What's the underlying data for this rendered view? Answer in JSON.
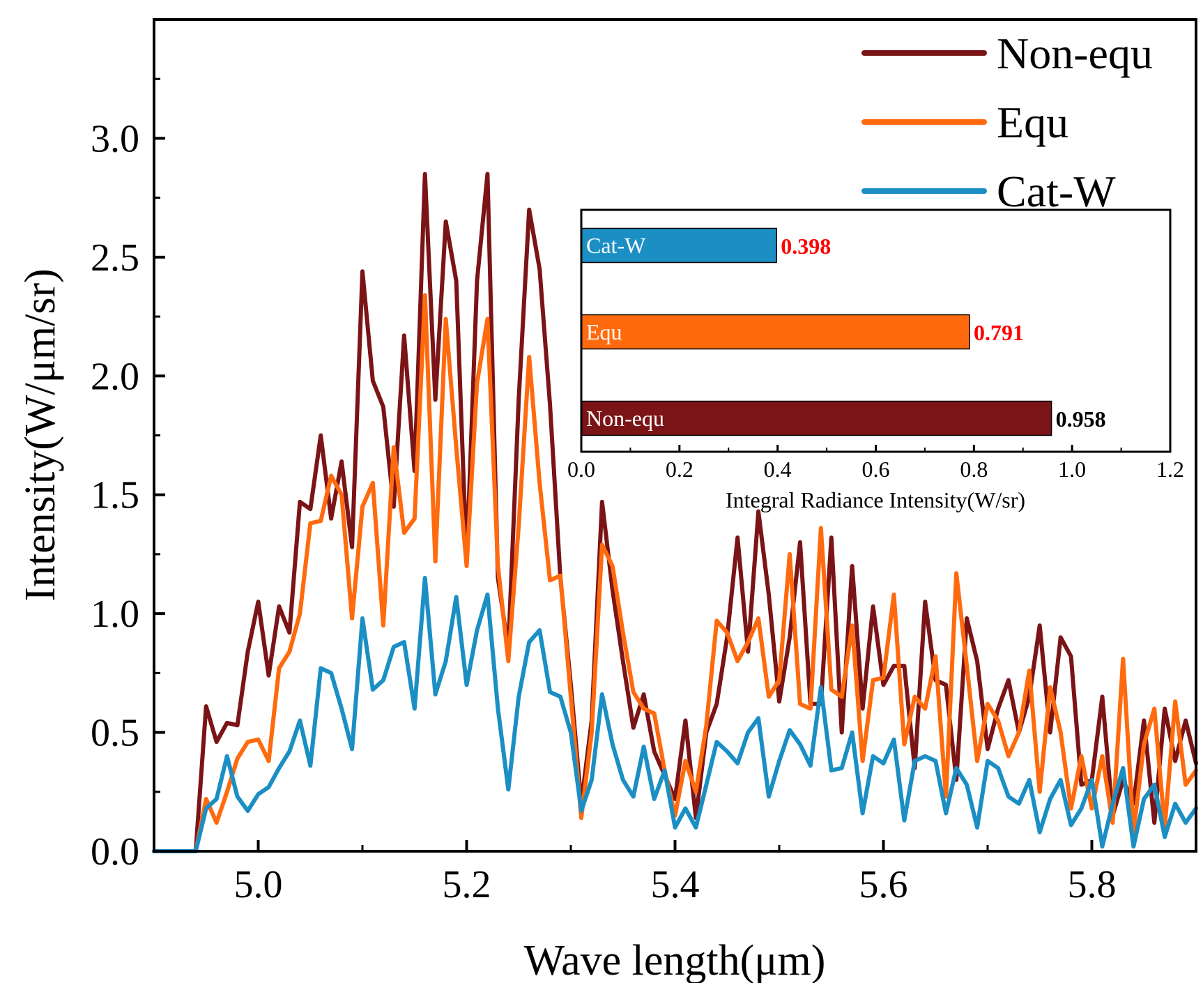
{
  "chart_data": [
    {
      "type": "line",
      "xlabel": "Wave length(μm)",
      "ylabel": "Intensity(W/μm/sr)",
      "xlim": [
        4.9,
        5.9
      ],
      "ylim": [
        0,
        3.5
      ],
      "x_ticks": [
        "5.0",
        "5.2",
        "5.4",
        "5.6",
        "5.8"
      ],
      "y_ticks": [
        "0.0",
        "0.5",
        "1.0",
        "1.5",
        "2.0",
        "2.5",
        "3.0"
      ],
      "x_start": 4.9,
      "x_step": 0.01,
      "series": [
        {
          "name": "Non-equ",
          "color": "#7b1416",
          "values": [
            0,
            0,
            0,
            0,
            0,
            0.61,
            0.46,
            0.54,
            0.53,
            0.84,
            1.05,
            0.74,
            1.03,
            0.92,
            1.47,
            1.44,
            1.75,
            1.4,
            1.64,
            1.28,
            2.44,
            1.98,
            1.87,
            1.45,
            2.17,
            1.6,
            2.85,
            1.9,
            2.65,
            2.4,
            1.22,
            2.4,
            2.85,
            1.15,
            0.85,
            1.9,
            2.7,
            2.45,
            1.88,
            1.15,
            0.7,
            0.2,
            0.55,
            1.47,
            1.1,
            0.8,
            0.52,
            0.66,
            0.42,
            0.32,
            0.22,
            0.55,
            0.14,
            0.5,
            0.62,
            0.9,
            1.32,
            0.84,
            1.43,
            1.08,
            0.63,
            0.9,
            1.3,
            0.62,
            0.62,
            1.32,
            0.5,
            1.2,
            0.6,
            1.03,
            0.7,
            0.78,
            0.78,
            0.35,
            1.05,
            0.72,
            0.7,
            0.3,
            0.98,
            0.8,
            0.43,
            0.6,
            0.72,
            0.5,
            0.65,
            0.95,
            0.5,
            0.9,
            0.82,
            0.28,
            0.3,
            0.65,
            0.15,
            0.3,
            0.2,
            0.55,
            0.12,
            0.6,
            0.38,
            0.55,
            0.37
          ]
        },
        {
          "name": "Equ",
          "color": "#ff6a0e",
          "values": [
            0,
            0,
            0,
            0,
            0,
            0.22,
            0.12,
            0.25,
            0.39,
            0.46,
            0.47,
            0.38,
            0.77,
            0.84,
            1.0,
            1.38,
            1.39,
            1.58,
            1.5,
            0.98,
            1.45,
            1.55,
            0.95,
            1.7,
            1.34,
            1.4,
            2.34,
            1.22,
            2.24,
            1.7,
            1.2,
            1.97,
            2.24,
            1.2,
            0.8,
            1.37,
            2.08,
            1.55,
            1.14,
            1.16,
            0.65,
            0.14,
            0.5,
            1.29,
            1.2,
            0.92,
            0.67,
            0.6,
            0.58,
            0.34,
            0.15,
            0.38,
            0.25,
            0.53,
            0.97,
            0.92,
            0.8,
            0.88,
            0.98,
            0.65,
            0.72,
            1.25,
            0.62,
            0.6,
            1.36,
            0.68,
            0.65,
            0.95,
            0.38,
            0.72,
            0.73,
            1.08,
            0.45,
            0.65,
            0.6,
            0.82,
            0.23,
            1.17,
            0.78,
            0.38,
            0.62,
            0.55,
            0.4,
            0.5,
            0.76,
            0.25,
            0.69,
            0.5,
            0.18,
            0.4,
            0.18,
            0.4,
            0.12,
            0.81,
            0.08,
            0.45,
            0.6,
            0.1,
            0.63,
            0.28,
            0.34
          ]
        },
        {
          "name": "Cat-W",
          "color": "#1b8fc4",
          "values": [
            0,
            0,
            0,
            0,
            0,
            0.18,
            0.22,
            0.4,
            0.23,
            0.17,
            0.24,
            0.27,
            0.35,
            0.42,
            0.55,
            0.36,
            0.77,
            0.75,
            0.6,
            0.43,
            0.98,
            0.68,
            0.72,
            0.86,
            0.88,
            0.6,
            1.15,
            0.66,
            0.8,
            1.07,
            0.7,
            0.93,
            1.08,
            0.6,
            0.26,
            0.65,
            0.88,
            0.93,
            0.67,
            0.65,
            0.5,
            0.17,
            0.3,
            0.66,
            0.45,
            0.3,
            0.23,
            0.44,
            0.22,
            0.34,
            0.1,
            0.18,
            0.1,
            0.28,
            0.46,
            0.42,
            0.37,
            0.5,
            0.56,
            0.23,
            0.38,
            0.51,
            0.45,
            0.36,
            0.69,
            0.34,
            0.35,
            0.5,
            0.16,
            0.4,
            0.37,
            0.47,
            0.13,
            0.38,
            0.4,
            0.38,
            0.16,
            0.35,
            0.28,
            0.1,
            0.38,
            0.35,
            0.23,
            0.2,
            0.3,
            0.08,
            0.22,
            0.3,
            0.11,
            0.18,
            0.3,
            0.02,
            0.2,
            0.35,
            0.02,
            0.22,
            0.28,
            0.06,
            0.2,
            0.12,
            0.18
          ]
        }
      ],
      "legend": "top-right"
    },
    {
      "type": "bar",
      "orientation": "horizontal",
      "xlabel": "Integral Radiance Intensity(W/sr)",
      "xlim": [
        0,
        1.2
      ],
      "x_ticks": [
        "0.0",
        "0.2",
        "0.4",
        "0.6",
        "0.8",
        "1.0",
        "1.2"
      ],
      "categories": [
        "Cat-W",
        "Equ",
        "Non-equ"
      ],
      "values": [
        0.398,
        0.791,
        0.958
      ],
      "value_labels": [
        "0.398",
        "0.791",
        "0.958"
      ],
      "bar_colors": [
        "#1b8fc4",
        "#ff6a0e",
        "#7b1416"
      ],
      "label_colors": [
        "#ff0000",
        "#ff0000",
        "#000000"
      ]
    }
  ]
}
